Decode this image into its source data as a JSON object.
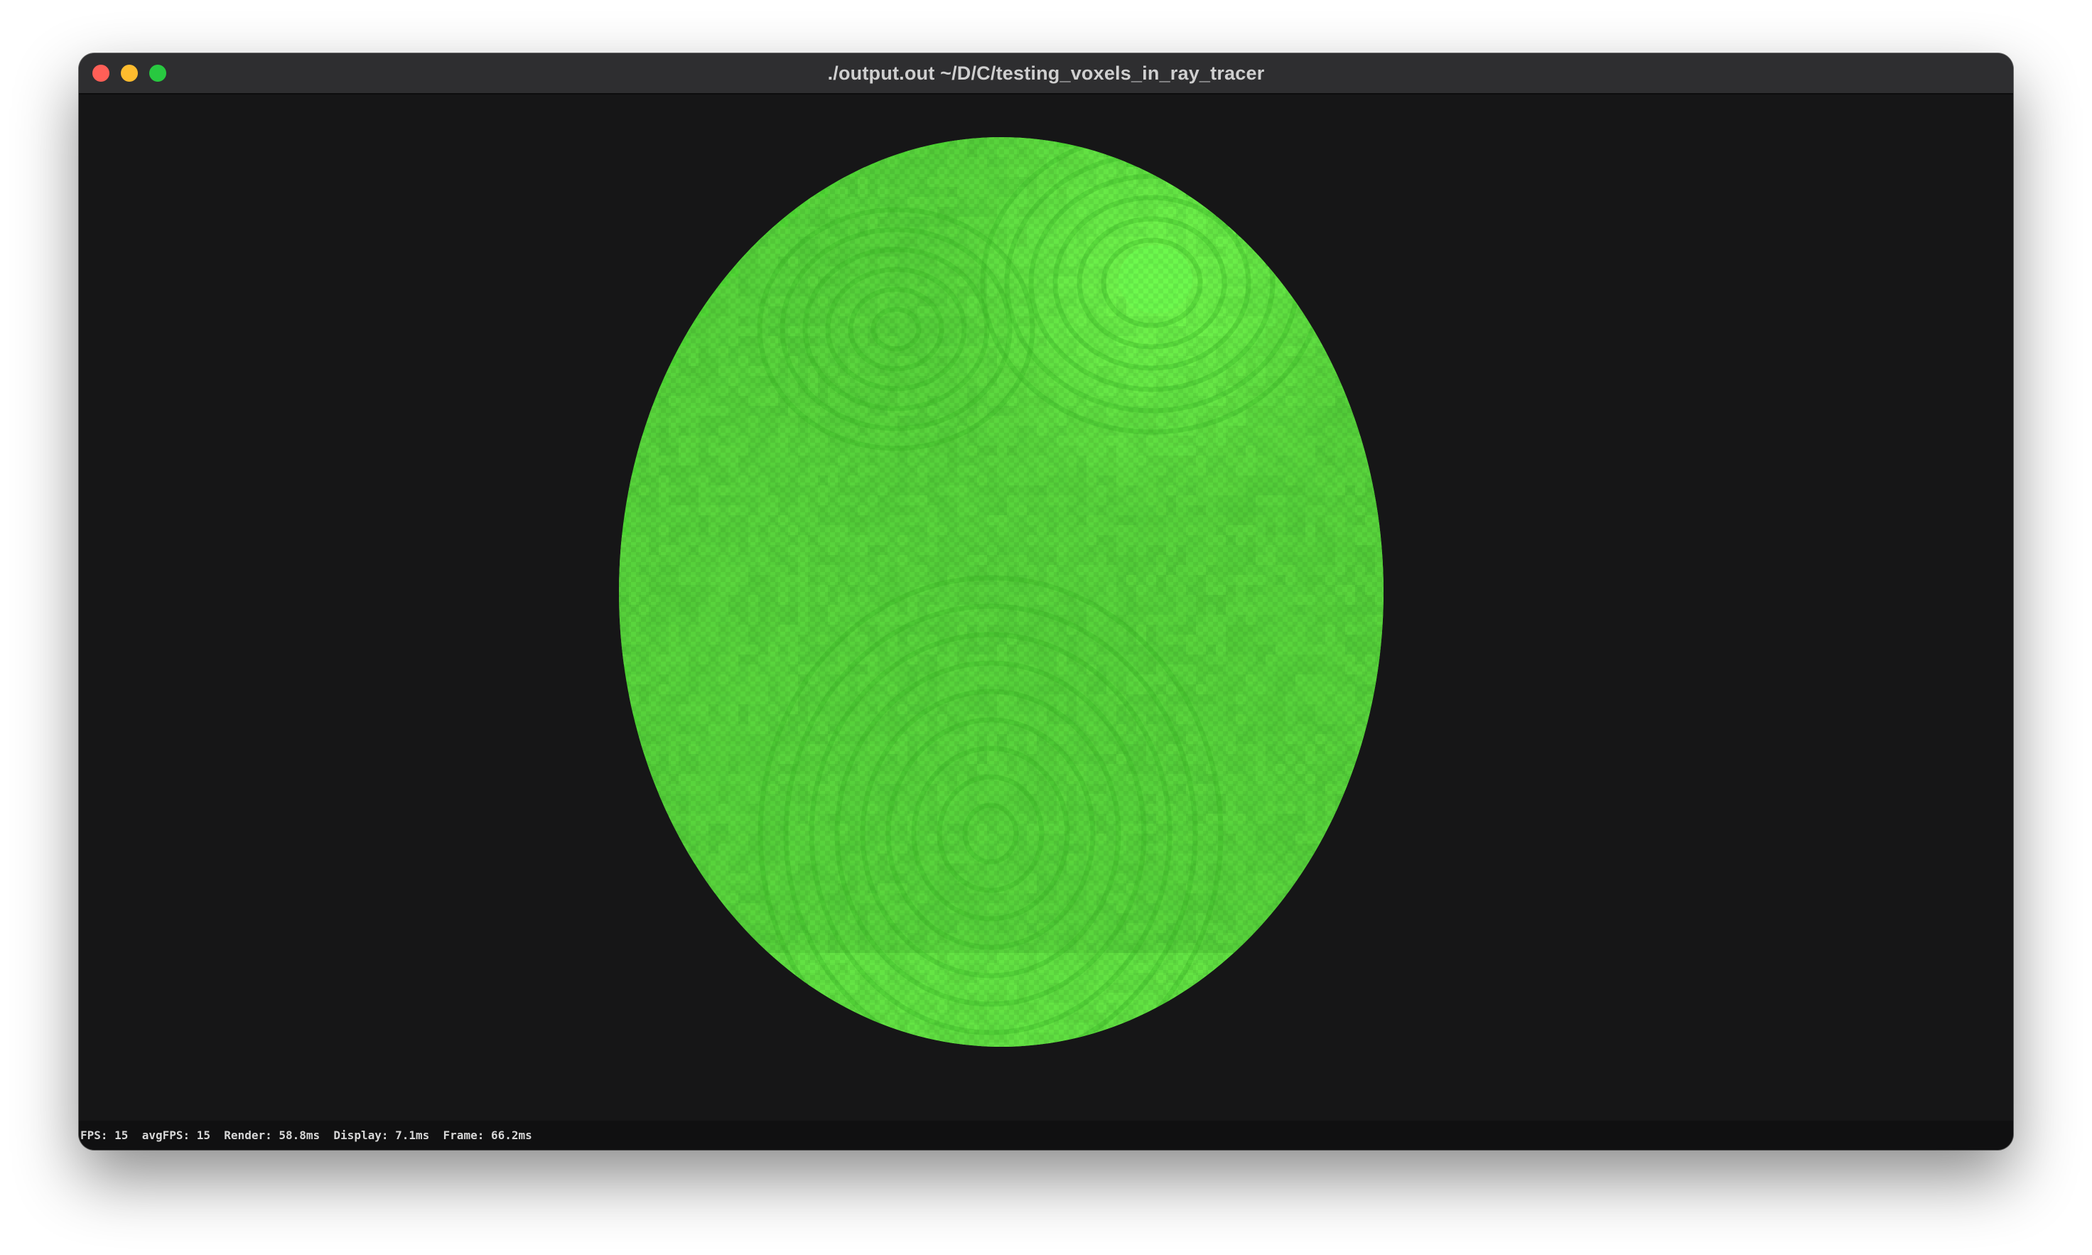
{
  "window": {
    "title": "./output.out  ~/D/C/testing_voxels_in_ray_tracer",
    "controls": {
      "close_color": "#ff5f57",
      "minimize_color": "#febc2e",
      "zoom_color": "#28c840"
    }
  },
  "scene": {
    "background_color": "#161617",
    "object_color": "#4fd634",
    "highlight_color": "#6cf94e",
    "shadow_color": "#39b624"
  },
  "status": {
    "stats_text": "FPS: 15  avgFPS: 15  Render: 58.8ms  Display: 7.1ms  Frame: 66.2ms"
  }
}
